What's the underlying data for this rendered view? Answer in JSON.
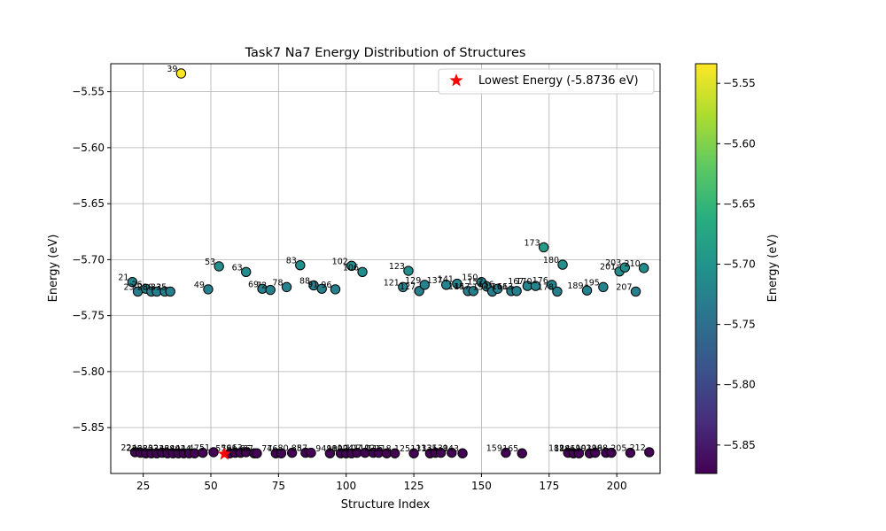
{
  "chart_data": {
    "type": "scatter",
    "title": "Task7 Na7 Energy Distribution of Structures",
    "xlabel": "Structure Index",
    "ylabel": "Energy (eV)",
    "xlim": [
      13,
      216
    ],
    "ylim": [
      -5.891,
      -5.525
    ],
    "xticks": [
      25,
      50,
      75,
      100,
      125,
      150,
      175,
      200
    ],
    "yticks": [
      -5.85,
      -5.8,
      -5.75,
      -5.7,
      -5.65,
      -5.6,
      -5.55
    ],
    "ytick_labels": [
      "−5.85",
      "−5.80",
      "−5.75",
      "−5.70",
      "−5.65",
      "−5.60",
      "−5.55"
    ],
    "grid": true,
    "legend": {
      "placement": "top-right",
      "label": "Lowest Energy (-5.8736 eV)",
      "marker_color": "#ff0000"
    },
    "colorbar": {
      "label": "Energy (eV)",
      "colormap": "viridis",
      "range": [
        -5.8736,
        -5.5337
      ],
      "ticks": [
        -5.85,
        -5.8,
        -5.75,
        -5.7,
        -5.65,
        -5.6,
        -5.55
      ],
      "tick_labels": [
        "−5.85",
        "−5.80",
        "−5.75",
        "−5.70",
        "−5.65",
        "−5.60",
        "−5.55"
      ]
    },
    "lowest": {
      "x": 55,
      "y": -5.8736
    },
    "points": [
      [
        21,
        -5.72,
        "21"
      ],
      [
        23,
        -5.7285,
        "23"
      ],
      [
        26,
        -5.726,
        "26"
      ],
      [
        28,
        -5.7285,
        "28"
      ],
      [
        30,
        -5.7285,
        "30"
      ],
      [
        33,
        -5.7285,
        "33"
      ],
      [
        35,
        -5.7285,
        "35"
      ],
      [
        39,
        -5.5337,
        "39"
      ],
      [
        49,
        -5.7265,
        "49"
      ],
      [
        53,
        -5.706,
        "53"
      ],
      [
        63,
        -5.711,
        "63"
      ],
      [
        69,
        -5.726,
        "69"
      ],
      [
        72,
        -5.727,
        "72"
      ],
      [
        78,
        -5.7245,
        "78"
      ],
      [
        83,
        -5.705,
        "83"
      ],
      [
        88,
        -5.723,
        "88"
      ],
      [
        91,
        -5.726,
        "91"
      ],
      [
        96,
        -5.7265,
        "96"
      ],
      [
        102,
        -5.7055,
        "102"
      ],
      [
        106,
        -5.711,
        "106"
      ],
      [
        123,
        -5.71,
        "123"
      ],
      [
        121,
        -5.7245,
        "121"
      ],
      [
        127,
        -5.728,
        "127"
      ],
      [
        129,
        -5.7225,
        "129"
      ],
      [
        137,
        -5.7225,
        "137"
      ],
      [
        141,
        -5.7215,
        "141"
      ],
      [
        145,
        -5.728,
        "145"
      ],
      [
        147,
        -5.728,
        "147"
      ],
      [
        150,
        -5.72,
        "150"
      ],
      [
        152,
        -5.724,
        "152"
      ],
      [
        154,
        -5.7285,
        "154"
      ],
      [
        156,
        -5.726,
        "156"
      ],
      [
        161,
        -5.728,
        "161"
      ],
      [
        163,
        -5.728,
        "163"
      ],
      [
        167,
        -5.7235,
        "167"
      ],
      [
        170,
        -5.7235,
        "170"
      ],
      [
        173,
        -5.689,
        "173"
      ],
      [
        176,
        -5.7225,
        "176"
      ],
      [
        178,
        -5.7285,
        "178"
      ],
      [
        180,
        -5.7045,
        "180"
      ],
      [
        189,
        -5.7275,
        "189"
      ],
      [
        195,
        -5.7245,
        "195"
      ],
      [
        201,
        -5.7105,
        "201"
      ],
      [
        203,
        -5.707,
        "203"
      ],
      [
        207,
        -5.7285,
        "207"
      ],
      [
        210,
        -5.7075,
        "210"
      ],
      [
        22,
        -5.872,
        "22"
      ],
      [
        24,
        -5.8725,
        "24"
      ],
      [
        26,
        -5.873,
        "26"
      ],
      [
        28,
        -5.873,
        "28"
      ],
      [
        30,
        -5.873,
        "30"
      ],
      [
        32,
        -5.8725,
        "32"
      ],
      [
        34,
        -5.873,
        "34"
      ],
      [
        36,
        -5.873,
        "36"
      ],
      [
        38,
        -5.873,
        "38"
      ],
      [
        40,
        -5.873,
        "40"
      ],
      [
        42,
        -5.873,
        "42"
      ],
      [
        44,
        -5.873,
        "44"
      ],
      [
        47,
        -5.8725,
        "47"
      ],
      [
        51,
        -5.872,
        "51"
      ],
      [
        57,
        -5.873,
        "57"
      ],
      [
        59,
        -5.8725,
        "59"
      ],
      [
        61,
        -5.8725,
        "61"
      ],
      [
        63,
        -5.872,
        "63"
      ],
      [
        66,
        -5.873,
        "66"
      ],
      [
        67,
        -5.873,
        "67"
      ],
      [
        74,
        -5.873,
        "74"
      ],
      [
        76,
        -5.873,
        "76"
      ],
      [
        80,
        -5.8725,
        "80"
      ],
      [
        85,
        -5.8725,
        "85"
      ],
      [
        87,
        -5.8725,
        "87"
      ],
      [
        94,
        -5.873,
        "94"
      ],
      [
        98,
        -5.873,
        "98"
      ],
      [
        100,
        -5.873,
        "100"
      ],
      [
        102,
        -5.873,
        "102"
      ],
      [
        104,
        -5.8725,
        "104"
      ],
      [
        107,
        -5.8725,
        "107"
      ],
      [
        110,
        -5.8725,
        "110"
      ],
      [
        112,
        -5.8725,
        "112"
      ],
      [
        115,
        -5.873,
        "115"
      ],
      [
        118,
        -5.873,
        "118"
      ],
      [
        125,
        -5.873,
        "125"
      ],
      [
        131,
        -5.873,
        "131"
      ],
      [
        133,
        -5.8725,
        "133"
      ],
      [
        135,
        -5.8725,
        "135"
      ],
      [
        139,
        -5.8725,
        "139"
      ],
      [
        143,
        -5.873,
        "143"
      ],
      [
        159,
        -5.8725,
        "159"
      ],
      [
        165,
        -5.873,
        "165"
      ],
      [
        182,
        -5.8725,
        "182"
      ],
      [
        184,
        -5.873,
        "184"
      ],
      [
        186,
        -5.873,
        "186"
      ],
      [
        190,
        -5.873,
        "190"
      ],
      [
        192,
        -5.8725,
        "192"
      ],
      [
        196,
        -5.8725,
        "196"
      ],
      [
        198,
        -5.8725,
        "198"
      ],
      [
        205,
        -5.8725,
        "205"
      ],
      [
        212,
        -5.872,
        "212"
      ]
    ]
  }
}
